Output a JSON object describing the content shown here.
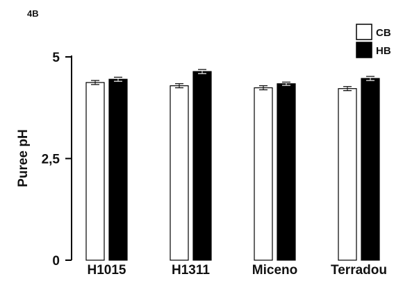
{
  "panel_label": "4B",
  "chart_data": {
    "type": "bar",
    "title": "",
    "xlabel": "",
    "ylabel": "Puree pH",
    "ylim": [
      0,
      5
    ],
    "yticks": [
      0,
      2.5,
      5
    ],
    "ytick_labels": [
      "0",
      "2,5",
      "5"
    ],
    "categories": [
      "H1015",
      "H1311",
      "Miceno",
      "Terradou"
    ],
    "series": [
      {
        "name": "CB",
        "color": "#ffffff",
        "values": [
          4.37,
          4.29,
          4.24,
          4.22
        ],
        "errors": [
          0.05,
          0.05,
          0.05,
          0.05
        ]
      },
      {
        "name": "HB",
        "color": "#000000",
        "values": [
          4.45,
          4.64,
          4.34,
          4.47
        ],
        "errors": [
          0.05,
          0.05,
          0.04,
          0.05
        ]
      }
    ],
    "legend_position": "top-right",
    "grid": false
  }
}
